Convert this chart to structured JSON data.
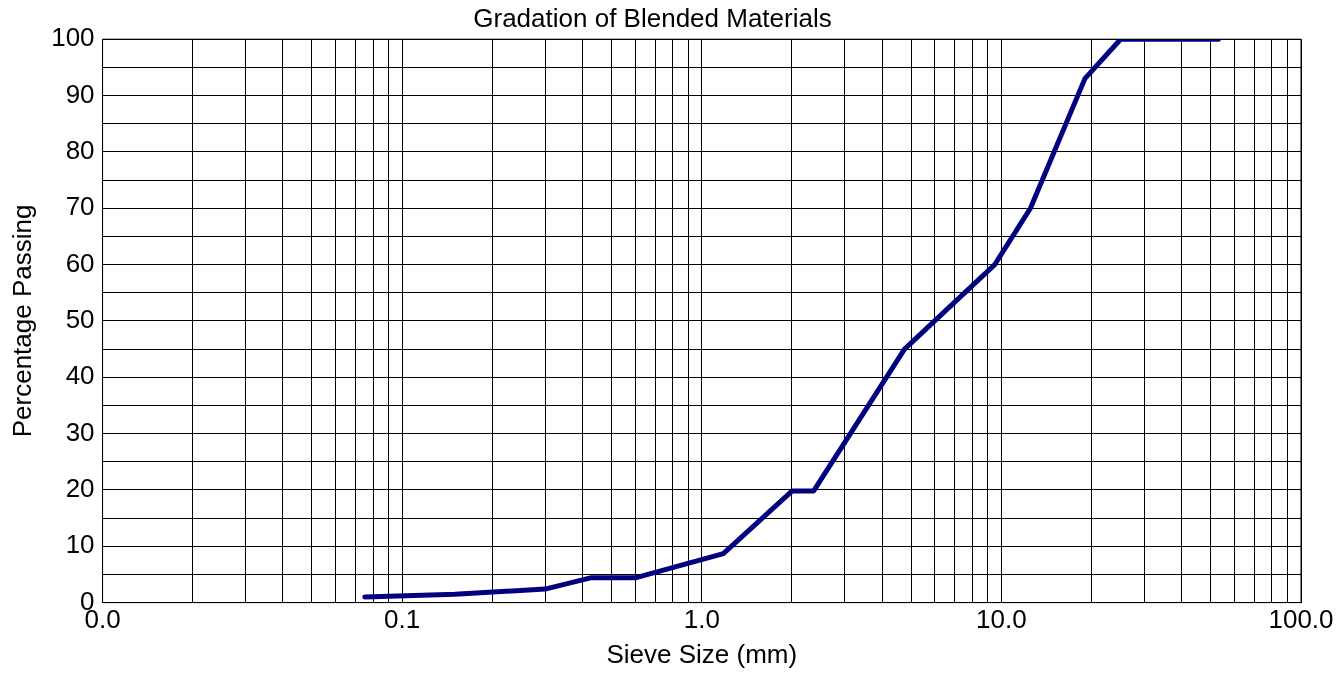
{
  "chart_data": {
    "type": "line",
    "title": "Gradation of Blended Materials",
    "xlabel": "Sieve Size (mm)",
    "ylabel": "Percentage Passing",
    "log": "x",
    "grid": true,
    "marker": "none",
    "line_style": "solid",
    "xlim": [
      0.01,
      100
    ],
    "xticks": [
      {
        "value": 0.01,
        "label": "0.0"
      },
      {
        "value": 0.02,
        "label": null
      },
      {
        "value": 0.03,
        "label": null
      },
      {
        "value": 0.04,
        "label": null
      },
      {
        "value": 0.05,
        "label": null
      },
      {
        "value": 0.06,
        "label": null
      },
      {
        "value": 0.07,
        "label": null
      },
      {
        "value": 0.08,
        "label": null
      },
      {
        "value": 0.09,
        "label": null
      },
      {
        "value": 0.1,
        "label": "0.1"
      },
      {
        "value": 0.2,
        "label": null
      },
      {
        "value": 0.3,
        "label": null
      },
      {
        "value": 0.4,
        "label": null
      },
      {
        "value": 0.5,
        "label": null
      },
      {
        "value": 0.6,
        "label": null
      },
      {
        "value": 0.7,
        "label": null
      },
      {
        "value": 0.8,
        "label": null
      },
      {
        "value": 0.9,
        "label": null
      },
      {
        "value": 1,
        "label": "1.0"
      },
      {
        "value": 2,
        "label": null
      },
      {
        "value": 3,
        "label": null
      },
      {
        "value": 4,
        "label": null
      },
      {
        "value": 5,
        "label": null
      },
      {
        "value": 6,
        "label": null
      },
      {
        "value": 7,
        "label": null
      },
      {
        "value": 8,
        "label": null
      },
      {
        "value": 9,
        "label": null
      },
      {
        "value": 10,
        "label": "10.0"
      },
      {
        "value": 20,
        "label": null
      },
      {
        "value": 30,
        "label": null
      },
      {
        "value": 40,
        "label": null
      },
      {
        "value": 50,
        "label": null
      },
      {
        "value": 60,
        "label": null
      },
      {
        "value": 70,
        "label": null
      },
      {
        "value": 80,
        "label": null
      },
      {
        "value": 90,
        "label": null
      },
      {
        "value": 100,
        "label": "100.0"
      }
    ],
    "ylim": [
      0,
      100
    ],
    "yticks": [
      0,
      {
        "value": 5,
        "label": null
      },
      10,
      {
        "value": 15,
        "label": null
      },
      20,
      {
        "value": 25,
        "label": null
      },
      30,
      {
        "value": 35,
        "label": null
      },
      40,
      {
        "value": 45,
        "label": null
      },
      50,
      {
        "value": 55,
        "label": null
      },
      60,
      {
        "value": 65,
        "label": null
      },
      70,
      {
        "value": 75,
        "label": null
      },
      80,
      {
        "value": 85,
        "label": null
      },
      90,
      {
        "value": 95,
        "label": null
      },
      100
    ],
    "x": [
      0.075,
      0.15,
      0.3,
      0.425,
      0.6,
      1.18,
      2.0,
      2.36,
      4.75,
      9.5,
      12.5,
      19,
      25,
      53
    ],
    "series": [
      {
        "color": "#000080",
        "values": [
          1,
          1.5,
          2.4,
          4.4,
          4.4,
          8.7,
          19.8,
          19.8,
          45,
          60,
          70,
          93,
          100,
          100
        ]
      }
    ]
  }
}
